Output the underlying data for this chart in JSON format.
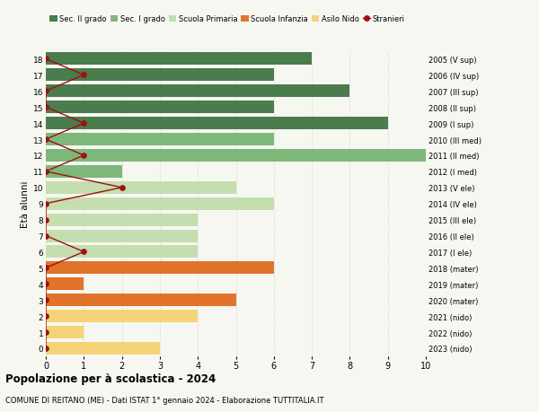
{
  "ages": [
    18,
    17,
    16,
    15,
    14,
    13,
    12,
    11,
    10,
    9,
    8,
    7,
    6,
    5,
    4,
    3,
    2,
    1,
    0
  ],
  "right_labels": [
    "2005 (V sup)",
    "2006 (IV sup)",
    "2007 (III sup)",
    "2008 (II sup)",
    "2009 (I sup)",
    "2010 (III med)",
    "2011 (II med)",
    "2012 (I med)",
    "2013 (V ele)",
    "2014 (IV ele)",
    "2015 (III ele)",
    "2016 (II ele)",
    "2017 (I ele)",
    "2018 (mater)",
    "2019 (mater)",
    "2020 (mater)",
    "2021 (nido)",
    "2022 (nido)",
    "2023 (nido)"
  ],
  "bar_values": [
    7,
    6,
    8,
    6,
    9,
    6,
    10,
    2,
    5,
    6,
    4,
    4,
    4,
    6,
    1,
    5,
    4,
    1,
    3
  ],
  "bar_colors": [
    "#4a7c4e",
    "#4a7c4e",
    "#4a7c4e",
    "#4a7c4e",
    "#4a7c4e",
    "#7db87a",
    "#7db87a",
    "#7db87a",
    "#c5deb0",
    "#c5deb0",
    "#c5deb0",
    "#c5deb0",
    "#c5deb0",
    "#e0742a",
    "#e0742a",
    "#e0742a",
    "#f5d478",
    "#f5d478",
    "#f5d478"
  ],
  "stranieri_values": [
    0,
    1,
    0,
    0,
    1,
    0,
    1,
    0,
    2,
    0,
    0,
    0,
    1,
    0,
    0,
    0,
    0,
    0,
    0
  ],
  "legend_labels": [
    "Sec. II grado",
    "Sec. I grado",
    "Scuola Primaria",
    "Scuola Infanzia",
    "Asilo Nido",
    "Stranieri"
  ],
  "legend_colors": [
    "#4a7c4e",
    "#7db87a",
    "#c5deb0",
    "#e0742a",
    "#f5d478",
    "#a01010"
  ],
  "title": "Popolazione per à scolastica - 2024",
  "subtitle": "COMUNE DI REITANO (ME) - Dati ISTAT 1° gennaio 2024 - Elaborazione TUTTITALIA.IT",
  "ylabel": "Età alunni",
  "xlim": [
    0,
    10
  ],
  "bg_color": "#f7f7f2",
  "grid_color": "#d8d8d8",
  "bar_height": 0.78
}
